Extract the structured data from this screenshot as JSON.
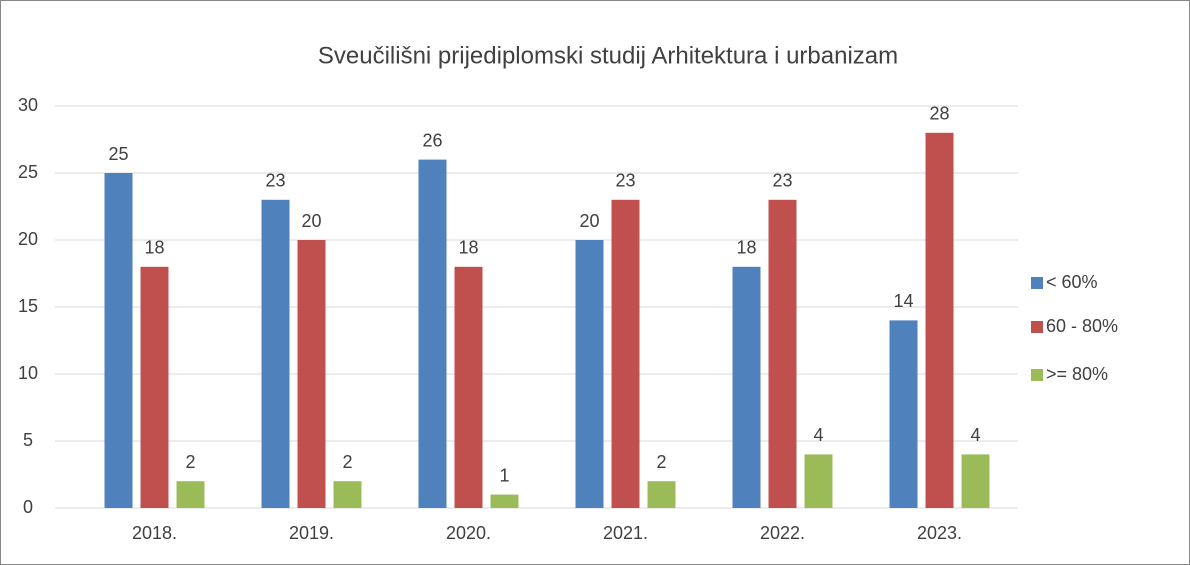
{
  "chart_data": {
    "type": "bar",
    "title": "Sveučilišni prijediplomski studij Arhitektura i urbanizam",
    "categories": [
      "2018.",
      "2019.",
      "2020.",
      "2021.",
      "2022.",
      "2023."
    ],
    "series": [
      {
        "name": "< 60%",
        "color": "#4f81bd",
        "values": [
          25,
          23,
          26,
          20,
          18,
          14
        ]
      },
      {
        "name": "60 - 80%",
        "color": "#c0504d",
        "values": [
          18,
          20,
          18,
          23,
          23,
          28
        ]
      },
      {
        "name": ">= 80%",
        "color": "#9bbb59",
        "values": [
          2,
          2,
          1,
          2,
          4,
          4
        ]
      }
    ],
    "ylim": [
      0,
      30
    ],
    "yticks": [
      0,
      5,
      10,
      15,
      20,
      25,
      30
    ],
    "grid": true,
    "legend": "right"
  }
}
